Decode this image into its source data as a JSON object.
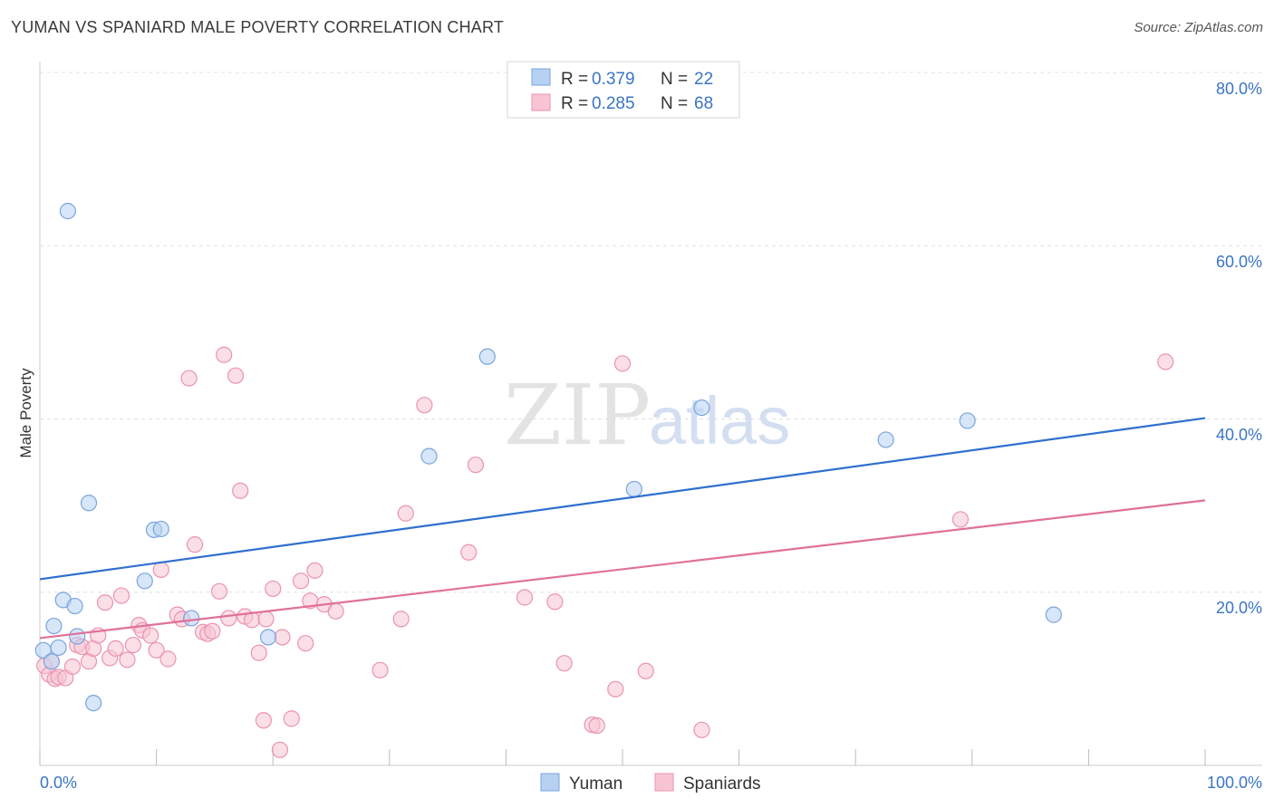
{
  "header": {
    "title": "YUMAN VS SPANIARD MALE POVERTY CORRELATION CHART",
    "source": "Source: ZipAtlas.com"
  },
  "watermark": {
    "zip": "ZIP",
    "atlas": "atlas"
  },
  "legend": {
    "rows": [
      {
        "r_label": "R =",
        "r_value": "0.379",
        "n_label": "N =",
        "n_value": "22"
      },
      {
        "r_label": "R =",
        "r_value": "0.285",
        "n_label": "N =",
        "n_value": "68"
      }
    ]
  },
  "bottom_legend": {
    "series1": "Yuman",
    "series2": "Spaniards"
  },
  "colors": {
    "yuman_fill": "#b7d1f3",
    "yuman_stroke": "#7aa4df",
    "yuman_line": "#2f6fd0",
    "spaniards_fill": "#f8c4d4",
    "spaniards_stroke": "#eb93af",
    "spaniards_line": "#e0709a",
    "tick_label": "#3a75c4",
    "grid": "#e0e0e0"
  },
  "chart_data": {
    "type": "scatter",
    "title": "YUMAN VS SPANIARD MALE POVERTY CORRELATION CHART",
    "xlabel": "",
    "ylabel": "Male Poverty",
    "xlim": [
      0,
      100
    ],
    "ylim": [
      0,
      80
    ],
    "y_ticks": [
      "80.0%",
      "60.0%",
      "40.0%",
      "20.0%"
    ],
    "x_ticks": [
      "0.0%",
      "100.0%"
    ],
    "series": [
      {
        "name": "Yuman",
        "points": [
          [
            0.3,
            13.3
          ],
          [
            1.0,
            12.0
          ],
          [
            1.2,
            16.1
          ],
          [
            1.6,
            13.6
          ],
          [
            2.0,
            19.1
          ],
          [
            2.4,
            64.0
          ],
          [
            3.0,
            18.4
          ],
          [
            3.2,
            14.9
          ],
          [
            4.2,
            30.3
          ],
          [
            4.6,
            7.2
          ],
          [
            9.0,
            21.3
          ],
          [
            9.8,
            27.2
          ],
          [
            10.4,
            27.3
          ],
          [
            13.0,
            17.0
          ],
          [
            19.6,
            14.8
          ],
          [
            33.4,
            35.7
          ],
          [
            38.4,
            47.2
          ],
          [
            51.0,
            31.9
          ],
          [
            56.8,
            41.3
          ],
          [
            72.6,
            37.6
          ],
          [
            79.6,
            39.8
          ],
          [
            87.0,
            17.4
          ]
        ],
        "trend": {
          "x0": 0,
          "y0": 21.5,
          "x1": 100,
          "y1": 40.1
        }
      },
      {
        "name": "Spaniards",
        "points": [
          [
            0.4,
            11.5
          ],
          [
            0.8,
            10.5
          ],
          [
            1.0,
            12.0
          ],
          [
            1.3,
            10.0
          ],
          [
            1.6,
            10.2
          ],
          [
            2.2,
            10.1
          ],
          [
            2.8,
            11.4
          ],
          [
            3.2,
            13.9
          ],
          [
            3.6,
            13.7
          ],
          [
            4.2,
            12.0
          ],
          [
            4.6,
            13.5
          ],
          [
            5.0,
            15.0
          ],
          [
            5.6,
            18.8
          ],
          [
            6.0,
            12.4
          ],
          [
            6.5,
            13.5
          ],
          [
            7.0,
            19.6
          ],
          [
            7.5,
            12.2
          ],
          [
            8.0,
            13.9
          ],
          [
            8.5,
            16.2
          ],
          [
            8.8,
            15.6
          ],
          [
            9.5,
            15.0
          ],
          [
            10.0,
            13.3
          ],
          [
            10.4,
            22.6
          ],
          [
            11.0,
            12.3
          ],
          [
            11.8,
            17.4
          ],
          [
            12.2,
            16.9
          ],
          [
            12.8,
            44.7
          ],
          [
            13.3,
            25.5
          ],
          [
            14.0,
            15.4
          ],
          [
            14.4,
            15.2
          ],
          [
            14.8,
            15.5
          ],
          [
            15.4,
            20.1
          ],
          [
            15.8,
            47.4
          ],
          [
            16.2,
            17.0
          ],
          [
            16.8,
            45.0
          ],
          [
            17.2,
            31.7
          ],
          [
            17.6,
            17.2
          ],
          [
            18.2,
            16.8
          ],
          [
            18.8,
            13.0
          ],
          [
            19.4,
            16.9
          ],
          [
            19.2,
            5.2
          ],
          [
            20.0,
            20.4
          ],
          [
            20.6,
            1.8
          ],
          [
            20.8,
            14.8
          ],
          [
            21.6,
            5.4
          ],
          [
            22.4,
            21.3
          ],
          [
            22.8,
            14.1
          ],
          [
            23.2,
            19.0
          ],
          [
            23.6,
            22.5
          ],
          [
            24.4,
            18.6
          ],
          [
            25.4,
            17.8
          ],
          [
            29.2,
            11.0
          ],
          [
            31.0,
            16.9
          ],
          [
            31.4,
            29.1
          ],
          [
            33.0,
            41.6
          ],
          [
            36.8,
            24.6
          ],
          [
            37.4,
            34.7
          ],
          [
            41.6,
            19.4
          ],
          [
            44.2,
            18.9
          ],
          [
            45.0,
            11.8
          ],
          [
            47.4,
            4.7
          ],
          [
            47.8,
            4.6
          ],
          [
            49.4,
            8.8
          ],
          [
            50.0,
            46.4
          ],
          [
            52.0,
            10.9
          ],
          [
            56.8,
            4.1
          ],
          [
            79.0,
            28.4
          ],
          [
            96.6,
            46.6
          ]
        ],
        "trend": {
          "x0": 0,
          "y0": 14.7,
          "x1": 100,
          "y1": 30.6
        }
      }
    ]
  }
}
